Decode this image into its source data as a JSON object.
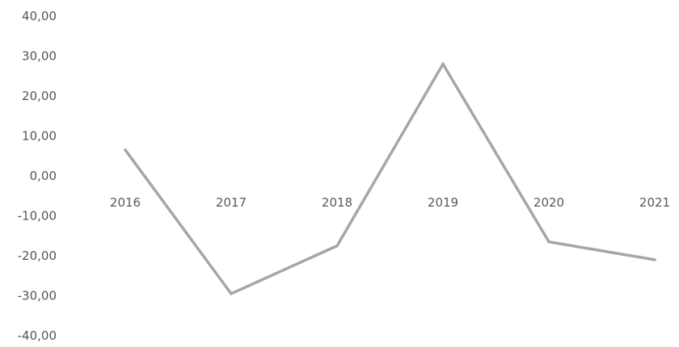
{
  "chart_data": {
    "type": "line",
    "categories": [
      "2016",
      "2017",
      "2018",
      "2019",
      "2020",
      "2021"
    ],
    "series": [
      {
        "values": [
          6.5,
          -29.5,
          -17.5,
          28.0,
          -16.5,
          -21.0
        ]
      }
    ],
    "ylim": [
      -40,
      40
    ],
    "y_ticks": [
      40,
      30,
      20,
      10,
      0,
      -10,
      -20,
      -30,
      -40
    ],
    "y_tick_labels": [
      "40,00",
      "30,00",
      "20,00",
      "10,00",
      "0,00",
      "-10,00",
      "-20,00",
      "-30,00",
      "-40,00"
    ],
    "title": "",
    "xlabel": "",
    "ylabel": "",
    "grid": false,
    "legend": "none",
    "colors": {
      "line": "#a6a6a6",
      "text": "#555555",
      "background": "#ffffff"
    }
  }
}
